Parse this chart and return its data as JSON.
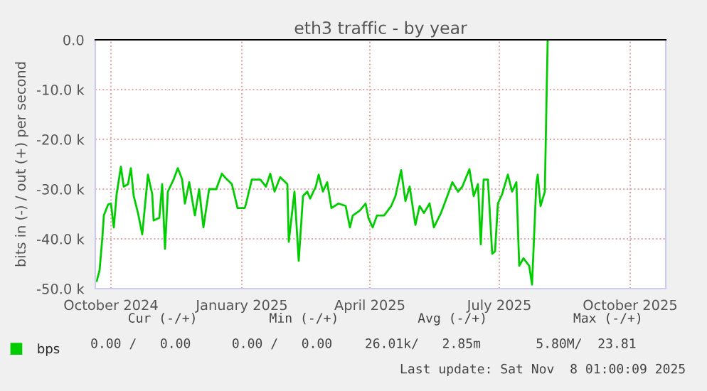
{
  "chart_data": {
    "type": "line",
    "title": "eth3 traffic - by year",
    "ylabel": "bits in (-) / out (+) per second",
    "x": [
      "2024-09-21",
      "2024-09-23",
      "2024-09-25",
      "2024-09-26",
      "2024-09-29",
      "2024-10-01",
      "2024-10-03",
      "2024-10-05",
      "2024-10-08",
      "2024-10-10",
      "2024-10-13",
      "2024-10-15",
      "2024-10-17",
      "2024-10-20",
      "2024-10-23",
      "2024-10-27",
      "2024-10-30",
      "2024-10-31",
      "2024-11-04",
      "2024-11-06",
      "2024-11-08",
      "2024-11-10",
      "2024-11-14",
      "2024-11-17",
      "2024-11-20",
      "2024-11-22",
      "2024-11-25",
      "2024-11-29",
      "2024-12-02",
      "2024-12-05",
      "2024-12-09",
      "2024-12-14",
      "2024-12-18",
      "2024-12-20",
      "2024-12-25",
      "2024-12-29",
      "2025-01-03",
      "2025-01-04",
      "2025-01-08",
      "2025-01-14",
      "2025-01-18",
      "2025-01-21",
      "2025-01-24",
      "2025-01-28",
      "2025-02-02",
      "2025-02-03",
      "2025-02-07",
      "2025-02-10",
      "2025-02-13",
      "2025-02-16",
      "2025-02-18",
      "2025-02-22",
      "2025-02-24",
      "2025-02-27",
      "2025-03-02",
      "2025-03-05",
      "2025-03-10",
      "2025-03-15",
      "2025-03-18",
      "2025-03-20",
      "2025-03-25",
      "2025-03-29",
      "2025-03-31",
      "2025-04-03",
      "2025-04-06",
      "2025-04-11",
      "2025-04-16",
      "2025-04-19",
      "2025-04-23",
      "2025-04-26",
      "2025-04-29",
      "2025-05-03",
      "2025-05-06",
      "2025-05-09",
      "2025-05-13",
      "2025-05-16",
      "2025-05-21",
      "2025-05-26",
      "2025-05-29",
      "2025-06-02",
      "2025-06-05",
      "2025-06-10",
      "2025-06-13",
      "2025-06-16",
      "2025-06-18",
      "2025-06-20",
      "2025-06-23",
      "2025-06-26",
      "2025-06-28",
      "2025-06-30",
      "2025-07-03",
      "2025-07-07",
      "2025-07-10",
      "2025-07-13",
      "2025-07-15",
      "2025-07-18",
      "2025-07-22",
      "2025-07-24",
      "2025-07-27",
      "2025-07-28",
      "2025-07-30",
      "2025-08-02",
      "2025-08-03",
      "2025-08-04"
    ],
    "series": [
      {
        "name": "bps",
        "color": "#00cc00",
        "values": [
          -48500,
          -46300,
          -39600,
          -35300,
          -33100,
          -32900,
          -37700,
          -31000,
          -25500,
          -29500,
          -29000,
          -25800,
          -31400,
          -34800,
          -39100,
          -27100,
          -31000,
          -36300,
          -35800,
          -29000,
          -42000,
          -30500,
          -28100,
          -25800,
          -28000,
          -32900,
          -28600,
          -35300,
          -30000,
          -37700,
          -30000,
          -30000,
          -26900,
          -27600,
          -29000,
          -33800,
          -33800,
          -32900,
          -28100,
          -28100,
          -29500,
          -26900,
          -30500,
          -27600,
          -29000,
          -40600,
          -30500,
          -44400,
          -31400,
          -30500,
          -31900,
          -29500,
          -27100,
          -30500,
          -28600,
          -33800,
          -32900,
          -33400,
          -37700,
          -35300,
          -34300,
          -32900,
          -35800,
          -37700,
          -35300,
          -35300,
          -33400,
          -31400,
          -26200,
          -32400,
          -29500,
          -37200,
          -33400,
          -34800,
          -32900,
          -37700,
          -34800,
          -31000,
          -28600,
          -30500,
          -29500,
          -26000,
          -31400,
          -29000,
          -41100,
          -28100,
          -28100,
          -43000,
          -42500,
          -32900,
          -31000,
          -27100,
          -30500,
          -28600,
          -45400,
          -43900,
          -45400,
          -49200,
          -29000,
          -27100,
          -33400,
          -30500,
          -14900,
          0
        ]
      }
    ],
    "xlim": [
      "2024-09-20",
      "2025-10-26"
    ],
    "xticks": [
      {
        "value": "2024-10-01",
        "label": "October 2024"
      },
      {
        "value": "2025-01-01",
        "label": "January 2025"
      },
      {
        "value": "2025-04-01",
        "label": "April 2025"
      },
      {
        "value": "2025-07-01",
        "label": "July 2025"
      },
      {
        "value": "2025-10-01",
        "label": "October 2025"
      }
    ],
    "ylim": [
      -50000,
      0
    ],
    "yticks": [
      {
        "value": -50000,
        "label": "-50.0 k"
      },
      {
        "value": -40000,
        "label": "-40.0 k"
      },
      {
        "value": -30000,
        "label": "-30.0 k"
      },
      {
        "value": -20000,
        "label": "-20.0 k"
      },
      {
        "value": -10000,
        "label": "-10.0 k"
      },
      {
        "value": 0,
        "label": "0.0"
      }
    ],
    "grid": true,
    "legend": "bottom",
    "annotations": [
      "Cur (-/+)",
      "Min (-/+)",
      "Avg (-/+)",
      "Max (-/+)",
      "0.00 /   0.00",
      "0.00 /   0.00",
      "26.01k/   2.85m",
      "5.80M/  23.81",
      "Last update: Sat Nov  8 01:00:09 2025"
    ]
  }
}
